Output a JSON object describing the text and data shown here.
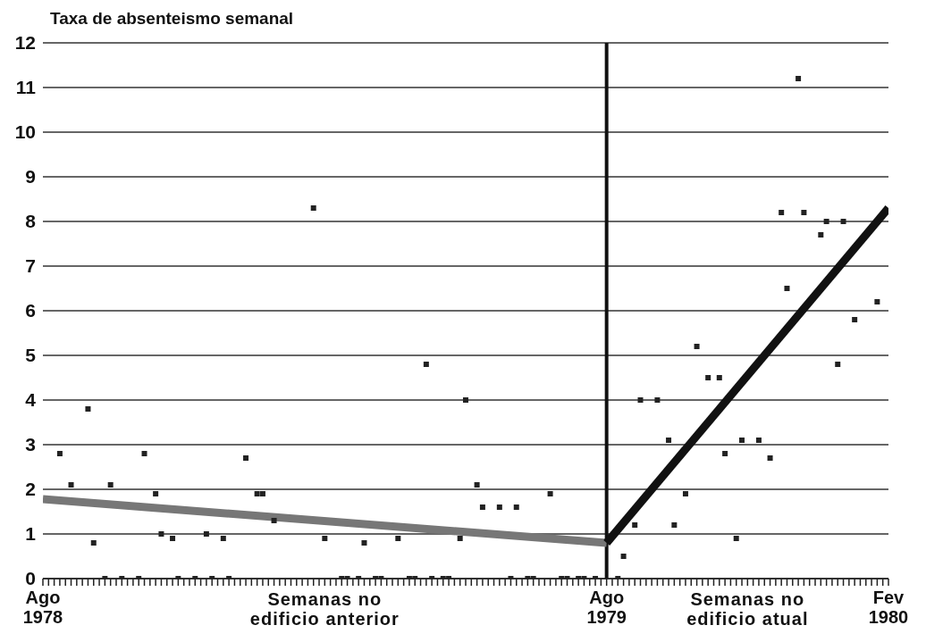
{
  "chart_data": {
    "type": "scatter",
    "ylabel": "Taxa de absenteismo semanal",
    "annotations": [
      "Semanas no edificio anterior",
      "Semanas no edificio atual"
    ],
    "categories": [
      "Ago 1978",
      null,
      null,
      null,
      null,
      null,
      null,
      null,
      null,
      null,
      null,
      null,
      null,
      null,
      null,
      null,
      null,
      null,
      null,
      null,
      null,
      null,
      null,
      null,
      null,
      null,
      null,
      null,
      null,
      null,
      null,
      null,
      null,
      null,
      null,
      null,
      null,
      null,
      null,
      null,
      null,
      null,
      null,
      null,
      null,
      null,
      null,
      null,
      null,
      null,
      null,
      null,
      null,
      null,
      null,
      null,
      null,
      null,
      null,
      null,
      null,
      null,
      null,
      null,
      null,
      null,
      null,
      null,
      null,
      null,
      null,
      null,
      null,
      null,
      null,
      null,
      null,
      null,
      null,
      null,
      null,
      null,
      null,
      null,
      null,
      null,
      null,
      null,
      null,
      null,
      null,
      null,
      null,
      null,
      null,
      null,
      null,
      null,
      null,
      null,
      "Ago 1979",
      null,
      null,
      null,
      null,
      null,
      null,
      null,
      null,
      null,
      null,
      null,
      null,
      null,
      null,
      null,
      null,
      null,
      null,
      null,
      null,
      null,
      null,
      null,
      null,
      null,
      null,
      null,
      null,
      null,
      null,
      null,
      null,
      null,
      null,
      null,
      null,
      null,
      null,
      null,
      null,
      null,
      null,
      null,
      null,
      null,
      null,
      null,
      null,
      null,
      "Fev 1980"
    ],
    "ylim": [
      0,
      12
    ],
    "yticks": [
      0,
      1,
      2,
      3,
      4,
      5,
      6,
      7,
      8,
      9,
      10,
      11,
      12
    ],
    "grid": "y",
    "marker": "square",
    "ref_lines": [
      {
        "axis": "x",
        "value": "Ago 1979",
        "color": "#111111"
      }
    ],
    "series": [
      {
        "color": "#222222",
        "values": [
          null,
          null,
          null,
          2.8,
          null,
          2.1,
          null,
          null,
          3.8,
          0.8,
          null,
          0,
          2.1,
          null,
          0,
          null,
          null,
          0,
          2.8,
          null,
          1.9,
          1.0,
          null,
          0.9,
          0,
          null,
          null,
          0,
          null,
          1.0,
          0,
          null,
          0.9,
          0,
          null,
          null,
          2.7,
          null,
          1.9,
          1.9,
          null,
          1.3,
          null,
          null,
          null,
          null,
          null,
          null,
          8.3,
          null,
          0.9,
          null,
          null,
          0,
          0,
          null,
          0,
          0.8,
          null,
          0,
          0,
          null,
          null,
          0.9,
          null,
          0,
          0,
          null,
          4.8,
          0,
          null,
          0,
          0,
          null,
          0.9,
          4.0,
          null,
          2.1,
          1.6,
          null,
          null,
          1.6,
          null,
          0,
          1.6,
          null,
          0,
          0,
          null,
          null,
          1.9,
          null,
          0,
          0,
          null,
          0,
          0,
          null,
          0,
          null,
          null,
          null,
          0,
          0.5,
          null,
          1.2,
          4.0,
          null,
          null,
          4.0,
          null,
          3.1,
          1.2,
          null,
          1.9,
          null,
          5.2,
          null,
          4.5,
          null,
          4.5,
          2.8,
          null,
          0.9,
          3.1,
          null,
          null,
          3.1,
          null,
          2.7,
          null,
          8.2,
          6.5,
          null,
          11.2,
          8.2,
          null,
          null,
          7.7,
          8.0,
          null,
          4.8,
          8.0,
          null,
          5.8,
          null,
          null,
          null,
          6.2,
          null,
          null
        ]
      },
      {
        "type": "line",
        "color": "#777777",
        "marker": "none",
        "values": [
          1.78,
          null,
          null,
          null,
          null,
          null,
          null,
          null,
          null,
          null,
          null,
          null,
          null,
          null,
          null,
          null,
          null,
          null,
          null,
          null,
          null,
          null,
          null,
          null,
          null,
          null,
          null,
          null,
          null,
          null,
          null,
          null,
          null,
          null,
          null,
          null,
          null,
          null,
          null,
          null,
          null,
          null,
          null,
          null,
          null,
          null,
          null,
          null,
          null,
          null,
          null,
          null,
          null,
          null,
          null,
          null,
          null,
          null,
          null,
          null,
          null,
          null,
          null,
          null,
          null,
          null,
          null,
          null,
          null,
          null,
          null,
          null,
          null,
          null,
          null,
          null,
          null,
          null,
          null,
          null,
          null,
          null,
          null,
          null,
          null,
          null,
          null,
          null,
          null,
          null,
          null,
          null,
          null,
          null,
          null,
          null,
          null,
          null,
          null,
          null,
          0.8,
          null,
          null,
          null,
          null,
          null,
          null,
          null,
          null,
          null,
          null,
          null,
          null,
          null,
          null,
          null,
          null,
          null,
          null,
          null,
          null,
          null,
          null,
          null,
          null,
          null,
          null,
          null,
          null,
          null,
          null,
          null,
          null,
          null,
          null,
          null,
          null,
          null,
          null,
          null,
          null,
          null,
          null,
          null,
          null,
          null,
          null,
          null,
          null,
          null,
          null
        ]
      },
      {
        "type": "line",
        "color": "#111111",
        "marker": "none",
        "values": [
          null,
          null,
          null,
          null,
          null,
          null,
          null,
          null,
          null,
          null,
          null,
          null,
          null,
          null,
          null,
          null,
          null,
          null,
          null,
          null,
          null,
          null,
          null,
          null,
          null,
          null,
          null,
          null,
          null,
          null,
          null,
          null,
          null,
          null,
          null,
          null,
          null,
          null,
          null,
          null,
          null,
          null,
          null,
          null,
          null,
          null,
          null,
          null,
          null,
          null,
          null,
          null,
          null,
          null,
          null,
          null,
          null,
          null,
          null,
          null,
          null,
          null,
          null,
          null,
          null,
          null,
          null,
          null,
          null,
          null,
          null,
          null,
          null,
          null,
          null,
          null,
          null,
          null,
          null,
          null,
          null,
          null,
          null,
          null,
          null,
          null,
          null,
          null,
          null,
          null,
          null,
          null,
          null,
          null,
          null,
          null,
          null,
          null,
          null,
          null,
          0.8,
          null,
          null,
          null,
          null,
          null,
          null,
          null,
          null,
          null,
          null,
          null,
          null,
          null,
          null,
          null,
          null,
          null,
          null,
          null,
          null,
          null,
          null,
          null,
          null,
          null,
          null,
          null,
          null,
          null,
          null,
          null,
          null,
          null,
          null,
          null,
          null,
          null,
          null,
          null,
          null,
          null,
          null,
          null,
          null,
          null,
          null,
          null,
          null,
          null,
          8.3
        ]
      }
    ]
  }
}
